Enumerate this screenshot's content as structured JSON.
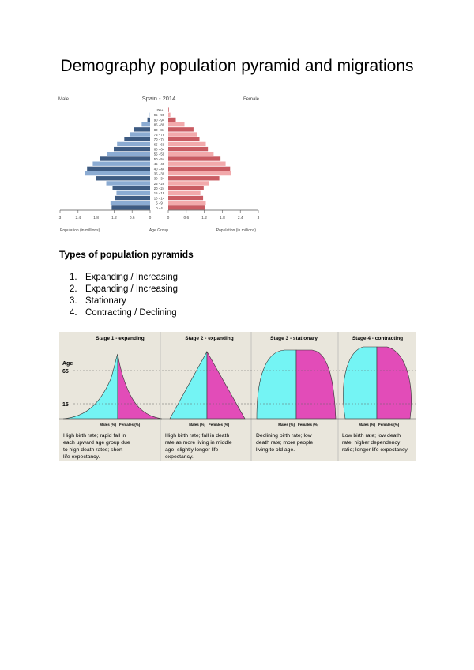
{
  "title": "Demography population pyramid and migrations",
  "chart_data": {
    "type": "bar",
    "title": "Spain - 2014",
    "left_label": "Male",
    "right_label": "Female",
    "xlabel_left": "Population (in millions)",
    "xlabel_center": "Age Group",
    "xlabel_right": "Population (in millions)",
    "xlim": [
      0,
      3
    ],
    "ticks_left": [
      "3",
      "2.4",
      "1.8",
      "1.2",
      "0.6",
      "0"
    ],
    "ticks_right": [
      "0",
      "0.6",
      "1.2",
      "1.8",
      "2.4",
      "3"
    ],
    "categories": [
      "0 - 4",
      "5 - 9",
      "10 - 14",
      "15 - 19",
      "20 - 24",
      "25 - 29",
      "30 - 34",
      "35 - 39",
      "40 - 44",
      "45 - 49",
      "50 - 54",
      "55 - 59",
      "60 - 64",
      "65 - 69",
      "70 - 74",
      "75 - 79",
      "80 - 84",
      "85 - 89",
      "90 - 94",
      "95 - 99",
      "100+"
    ],
    "series": [
      {
        "name": "Male",
        "values": [
          1.28,
          1.32,
          1.18,
          1.12,
          1.25,
          1.46,
          1.81,
          2.16,
          2.1,
          1.91,
          1.68,
          1.44,
          1.21,
          1.1,
          0.86,
          0.68,
          0.54,
          0.28,
          0.09,
          0.01,
          0.0
        ]
      },
      {
        "name": "Female",
        "values": [
          1.21,
          1.25,
          1.16,
          1.07,
          1.18,
          1.35,
          1.7,
          2.09,
          2.06,
          1.91,
          1.74,
          1.51,
          1.32,
          1.25,
          1.04,
          0.95,
          0.84,
          0.54,
          0.25,
          0.07,
          0.02
        ]
      }
    ],
    "colors": {
      "male_dark": "#3e5b82",
      "male_light": "#8babd2",
      "female_dark": "#c95b62",
      "female_light": "#f2a9ab"
    }
  },
  "section_heading": "Types of population pyramids",
  "pyramid_types": [
    {
      "num": "1.",
      "label": "Expanding / Increasing"
    },
    {
      "num": "2.",
      "label": "Expanding / Increasing"
    },
    {
      "num": "3.",
      "label": "Stationary"
    },
    {
      "num": "4.",
      "label": "Contracting / Declining"
    }
  ],
  "stages_figure": {
    "age_label": "Age",
    "age_65": "65",
    "age_15": "15",
    "colors": {
      "male": "#74f4f4",
      "female": "#e24cb8",
      "background": "#e9e6dc"
    },
    "stages": [
      {
        "title": "Stage 1 - expanding",
        "males": "Males (%)",
        "females": "Females (%)",
        "lines": [
          "High birth rate; rapid fall in",
          "each upward age group due",
          "to high death rates; short",
          "life expectancy."
        ]
      },
      {
        "title": "Stage 2 - expanding",
        "males": "Males (%)",
        "females": "Females (%)",
        "lines": [
          "High birth rate; fall in death",
          "rate as more living in middle",
          "age; slightly longer life",
          "expectancy."
        ]
      },
      {
        "title": "Stage 3 - stationary",
        "males": "Males (%)",
        "females": "Females (%)",
        "lines": [
          "Declining birth rate; low",
          "death rate; more people",
          "living to old age."
        ]
      },
      {
        "title": "Stage 4 - contracting",
        "males": "Males (%)",
        "females": "Females (%)",
        "lines": [
          "Low birth rate; low death",
          "rate; higher dependency",
          "ratio; longer life expectancy"
        ]
      }
    ]
  }
}
